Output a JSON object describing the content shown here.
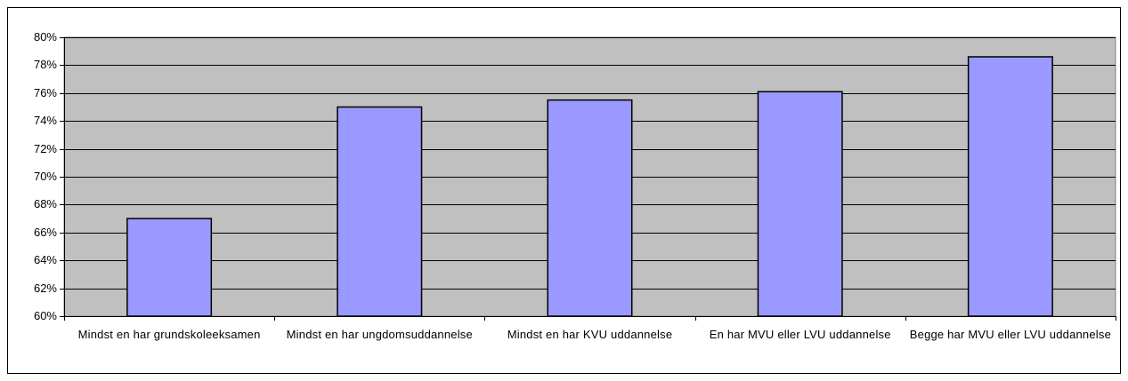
{
  "chart_data": {
    "type": "bar",
    "categories": [
      "Mindst en har grundskoleeksamen",
      "Mindst en har ungdomsuddannelse",
      "Mindst en har KVU uddannelse",
      "En har MVU eller LVU uddannelse",
      "Begge har MVU eller LVU uddannelse"
    ],
    "values": [
      67,
      75,
      75.5,
      76.1,
      78.6
    ],
    "color": "#9999ff",
    "ylim": [
      60,
      80
    ],
    "yticks": [
      {
        "value": 60,
        "label": "60%"
      },
      {
        "value": 62,
        "label": "62%"
      },
      {
        "value": 64,
        "label": "64%"
      },
      {
        "value": 66,
        "label": "66%"
      },
      {
        "value": 68,
        "label": "68%"
      },
      {
        "value": 70,
        "label": "70%"
      },
      {
        "value": 72,
        "label": "72%"
      },
      {
        "value": 74,
        "label": "74%"
      },
      {
        "value": 76,
        "label": "76%"
      },
      {
        "value": 78,
        "label": "78%"
      },
      {
        "value": 80,
        "label": "80%"
      }
    ],
    "grid": true
  }
}
